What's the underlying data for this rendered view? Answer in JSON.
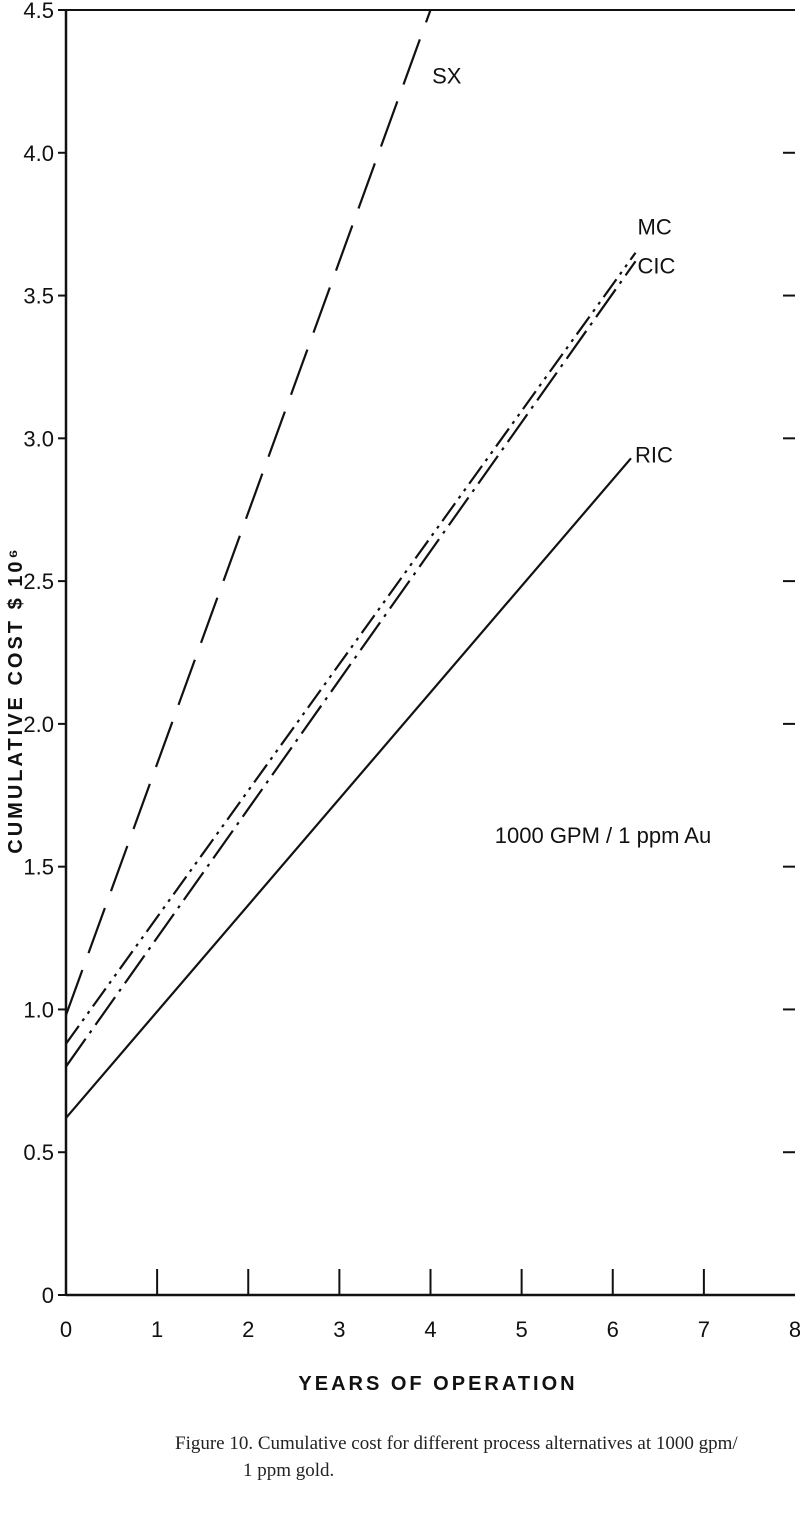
{
  "chart_data": {
    "type": "line",
    "title": "",
    "xlabel": "YEARS OF  OPERATION",
    "ylabel": "CUMULATIVE   COST  $ 10⁶",
    "xlim": [
      0,
      8
    ],
    "ylim": [
      0,
      4.5
    ],
    "x_ticks": [
      "0",
      "1",
      "2",
      "3",
      "4",
      "5",
      "6",
      "7",
      "8"
    ],
    "y_ticks": [
      "0",
      "0.5",
      "1.0",
      "1.5",
      "2.0",
      "2.5",
      "3.0",
      "3.5",
      "4.0",
      "4.5"
    ],
    "grid": false,
    "legend": "direct labels at line ends",
    "series": [
      {
        "name": "SX",
        "dash": "long-dash",
        "points": [
          [
            0,
            0.98
          ],
          [
            4.0,
            4.5
          ]
        ]
      },
      {
        "name": "MC",
        "dash": "dash-dot-dot",
        "points": [
          [
            0,
            0.88
          ],
          [
            6.25,
            3.65
          ]
        ]
      },
      {
        "name": "CIC",
        "dash": "long-dash-dot",
        "points": [
          [
            0,
            0.8
          ],
          [
            6.25,
            3.62
          ]
        ]
      },
      {
        "name": "RIC",
        "dash": "solid",
        "points": [
          [
            0,
            0.62
          ],
          [
            6.2,
            2.93
          ]
        ]
      }
    ],
    "annotations": [
      "1000 GPM / 1 ppm Au"
    ]
  },
  "caption": {
    "line1": "Figure 10.  Cumulative cost for different process alternatives at 1000 gpm/",
    "line2": "1 ppm gold."
  },
  "colors": {
    "ink": "#111111",
    "background": "#ffffff"
  }
}
